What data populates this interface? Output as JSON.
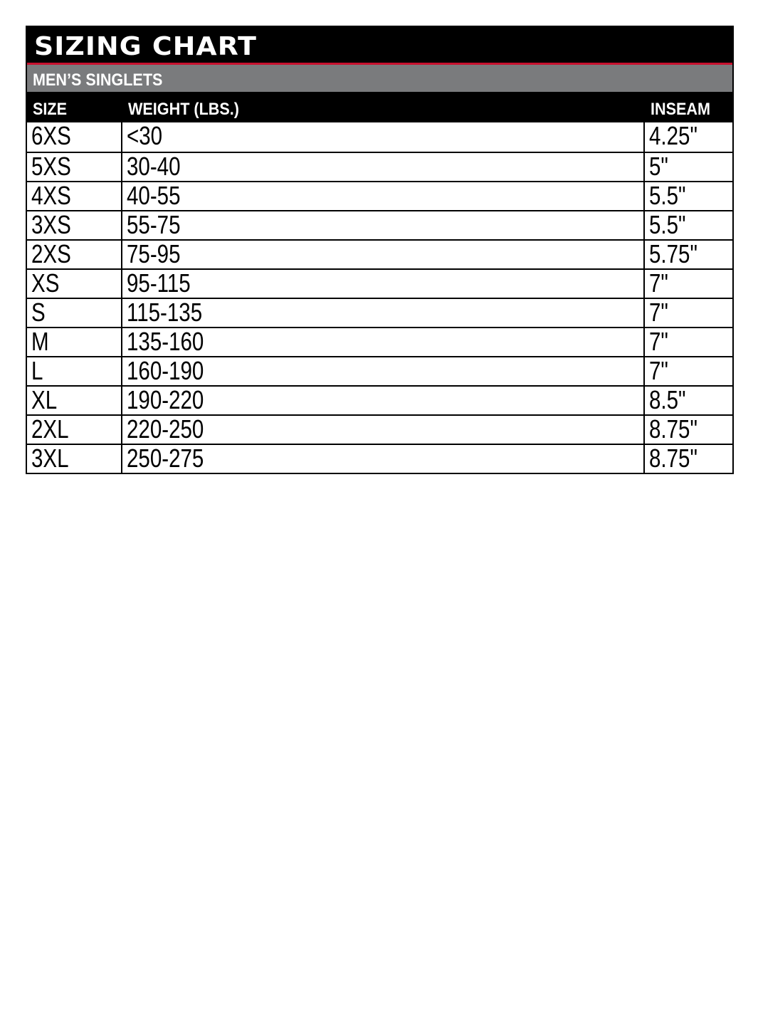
{
  "title": "Sizing Chart",
  "subtitle": "MEN’S SINGLETS",
  "colors": {
    "accent": "#c8102e",
    "subtitle_bg": "#7a7b7d",
    "header_bg": "#000000"
  },
  "columns": [
    "SIZE",
    "WEIGHT (LBS.)",
    "INSEAM"
  ],
  "rows": [
    [
      "6XS",
      "<30",
      "4.25\""
    ],
    [
      "5XS",
      "30-40",
      "5\""
    ],
    [
      "4XS",
      "40-55",
      "5.5\""
    ],
    [
      "3XS",
      "55-75",
      "5.5\""
    ],
    [
      "2XS",
      "75-95",
      "5.75\""
    ],
    [
      "XS",
      "95-115",
      "7\""
    ],
    [
      "S",
      "115-135",
      "7\""
    ],
    [
      "M",
      "135-160",
      "7\""
    ],
    [
      "L",
      "160-190",
      "7\""
    ],
    [
      "XL",
      "190-220",
      "8.5\""
    ],
    [
      "2XL",
      "220-250",
      "8.75\""
    ],
    [
      "3XL",
      "250-275",
      "8.75\""
    ]
  ]
}
